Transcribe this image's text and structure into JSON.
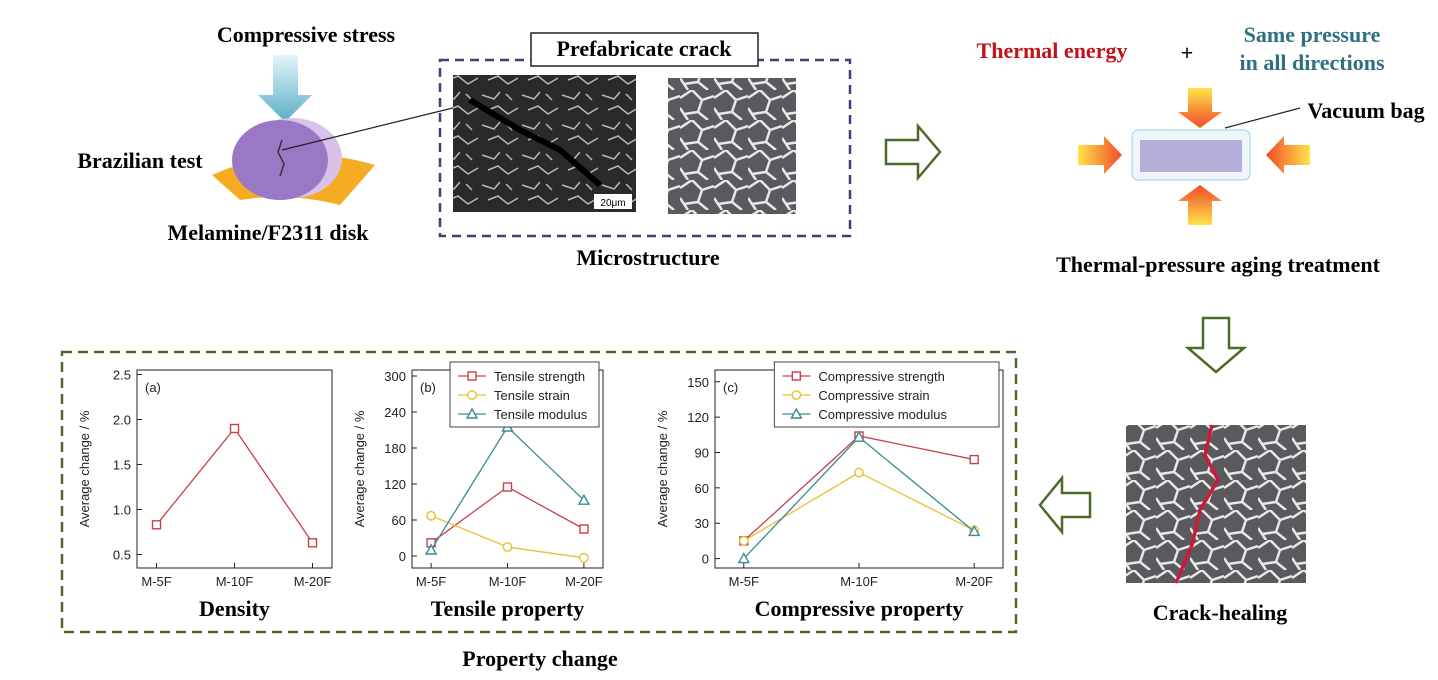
{
  "labels": {
    "compressive_stress": "Compressive stress",
    "brazilian_test": "Brazilian test",
    "disk": "Melamine/F2311 disk",
    "prefabricate_crack": "Prefabricate crack",
    "scale_bar": "20μm",
    "microstructure": "Microstructure",
    "thermal_energy": "Thermal energy",
    "plus": "+",
    "same_pressure_line1": "Same pressure",
    "same_pressure_line2": "in all directions",
    "vacuum_bag": "Vacuum bag",
    "treatment": "Thermal-pressure aging treatment",
    "crack_healing": "Crack-healing",
    "property_change": "Property change"
  },
  "chart_data": [
    {
      "type": "line",
      "panel": "(a)",
      "title": "Density",
      "ylabel": "Average change / %",
      "categories": [
        "M-5F",
        "M-10F",
        "M-20F"
      ],
      "series": [
        {
          "color": "#c8404a",
          "marker": "square",
          "values": [
            0.83,
            1.9,
            0.63
          ]
        }
      ],
      "ylim": [
        0.35,
        2.55
      ],
      "yticks": [
        0.5,
        {
          "value": 1,
          "label": "1.0"
        },
        1.5,
        {
          "value": 2,
          "label": "2.0"
        },
        2.5
      ]
    },
    {
      "type": "line",
      "panel": "(b)",
      "title": "Tensile property",
      "ylabel": "Average change / %",
      "categories": [
        "M-5F",
        "M-10F",
        "M-20F"
      ],
      "series": [
        {
          "name": "Tensile strength",
          "color": "#c8404a",
          "marker": "square",
          "values": [
            22,
            115,
            45
          ]
        },
        {
          "name": "Tensile strain",
          "color": "#e6c030",
          "marker": "circle",
          "values": [
            67,
            15,
            -3
          ]
        },
        {
          "name": "Tensile modulus",
          "color": "#3a8a90",
          "marker": "triangle",
          "values": [
            10,
            215,
            93
          ]
        }
      ],
      "ylim": [
        -20,
        310
      ],
      "yticks": [
        0,
        60,
        120,
        180,
        240,
        300
      ]
    },
    {
      "type": "line",
      "panel": "(c)",
      "title": "Compressive property",
      "ylabel": "Average change / %",
      "categories": [
        "M-5F",
        "M-10F",
        "M-20F"
      ],
      "series": [
        {
          "name": "Compressive strength",
          "color": "#c8404a",
          "marker": "square",
          "values": [
            15,
            104,
            84
          ]
        },
        {
          "name": "Compressive strain",
          "color": "#e6c030",
          "marker": "circle",
          "values": [
            15,
            73,
            24
          ]
        },
        {
          "name": "Compressive modulus",
          "color": "#3a8a90",
          "marker": "triangle",
          "values": [
            0,
            103,
            23
          ]
        }
      ],
      "ylim": [
        -8,
        160
      ],
      "yticks": [
        0,
        30,
        60,
        90,
        120,
        150
      ]
    }
  ]
}
